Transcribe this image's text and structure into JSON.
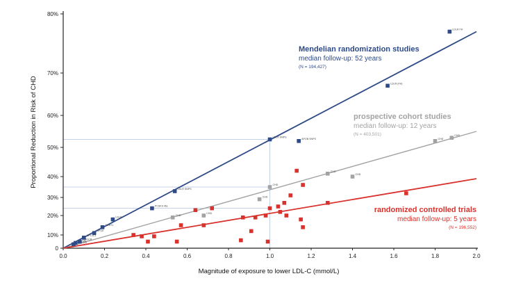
{
  "chart_data": {
    "type": "scatter",
    "title": "",
    "xlabel": "Magnitude of exposure to lower LDL-C (mmol/L)",
    "ylabel": "Proportional Reduction in Risk of CHD",
    "xlim": [
      0,
      2.0
    ],
    "ylim": [
      0,
      80
    ],
    "y_scale": "log-proportional",
    "x_ticks": [
      "0.0",
      "0.2",
      "0.4",
      "0.6",
      "0.8",
      "1.0",
      "1.2",
      "1.4",
      "1.6",
      "1.8",
      "2.0"
    ],
    "y_ticks": [
      "0",
      "10%",
      "20%",
      "30%",
      "40%",
      "50%",
      "60%",
      "70%",
      "80%"
    ],
    "grid": false,
    "colors": {
      "mendelian": "#2e4a87",
      "cohort": "#a3a3a3",
      "rct": "#d9312b"
    },
    "series": [
      {
        "name": "Mendelian randomization studies",
        "color": "#2e4a87",
        "annotation": {
          "title": "Mendelian randomization studies",
          "subtitle": "median follow-up: 52 years",
          "n": "(N = 194,427)"
        },
        "line": {
          "x": [
            0,
            2.0
          ],
          "y": [
            0,
            77
          ]
        },
        "points": [
          {
            "x": 0.05,
            "y": 3,
            "label": "ABCG5/8"
          },
          {
            "x": 0.06,
            "y": 4,
            "label": "ABCA1"
          },
          {
            "x": 0.08,
            "y": 5,
            "label": "HMGCR"
          },
          {
            "x": 0.1,
            "y": 8,
            "label": "NPC1L1"
          },
          {
            "x": 0.15,
            "y": 11,
            "label": "APOE"
          },
          {
            "x": 0.19,
            "y": 14,
            "label": "SORT1"
          },
          {
            "x": 0.24,
            "y": 18,
            "label": "LDLR"
          },
          {
            "x": 0.43,
            "y": 24,
            "label": "PCSK9 46L"
          },
          {
            "x": 0.54,
            "y": 33,
            "label": "LDLR SNPS"
          },
          {
            "x": 1.0,
            "y": 52.5,
            "label": "LDLR SNPS"
          },
          {
            "x": 1.14,
            "y": 52,
            "label": "APOB SNPS"
          },
          {
            "x": 1.57,
            "y": 67,
            "label": "LDLR (FH)"
          },
          {
            "x": 1.87,
            "y": 77,
            "label": "LDLR FH"
          }
        ]
      },
      {
        "name": "prospective cohort studies",
        "color": "#a3a3a3",
        "annotation": {
          "title": "prospective cohort studies",
          "subtitle": "median follow-up: 12 years",
          "n": "(N = 403,501)"
        },
        "line": {
          "x": [
            0,
            2.0
          ],
          "y": [
            0,
            55
          ]
        },
        "points": [
          {
            "x": 0.53,
            "y": 19,
            "label": "CHD"
          },
          {
            "x": 0.68,
            "y": 20,
            "label": "CHD"
          },
          {
            "x": 0.95,
            "y": 29,
            "label": "CHD"
          },
          {
            "x": 1.0,
            "y": 35,
            "label": "CHD"
          },
          {
            "x": 1.28,
            "y": 41,
            "label": "CHD"
          },
          {
            "x": 1.4,
            "y": 40,
            "label": "CHD"
          },
          {
            "x": 1.8,
            "y": 52,
            "label": "CHD"
          },
          {
            "x": 1.88,
            "y": 53,
            "label": "CHD"
          }
        ]
      },
      {
        "name": "randomized controlled trials",
        "color": "#d9312b",
        "annotation": {
          "title": "randomized controlled trials",
          "subtitle": "median follow-up: 5 years",
          "n": "(N = 196,552)"
        },
        "line": {
          "x": [
            0,
            2.0
          ],
          "y": [
            0,
            39
          ]
        },
        "points": [
          {
            "x": 0.34,
            "y": 10,
            "label": ""
          },
          {
            "x": 0.38,
            "y": 9,
            "label": ""
          },
          {
            "x": 0.44,
            "y": 9,
            "label": ""
          },
          {
            "x": 0.41,
            "y": 5,
            "label": ""
          },
          {
            "x": 0.55,
            "y": 5,
            "label": ""
          },
          {
            "x": 0.57,
            "y": 15,
            "label": ""
          },
          {
            "x": 0.64,
            "y": 23,
            "label": ""
          },
          {
            "x": 0.68,
            "y": 15,
            "label": ""
          },
          {
            "x": 0.72,
            "y": 24,
            "label": ""
          },
          {
            "x": 0.86,
            "y": 6,
            "label": ""
          },
          {
            "x": 0.87,
            "y": 19,
            "label": ""
          },
          {
            "x": 0.91,
            "y": 12,
            "label": ""
          },
          {
            "x": 0.93,
            "y": 19,
            "label": ""
          },
          {
            "x": 0.98,
            "y": 20,
            "label": ""
          },
          {
            "x": 0.99,
            "y": 5,
            "label": ""
          },
          {
            "x": 1.0,
            "y": 24,
            "label": ""
          },
          {
            "x": 1.04,
            "y": 25,
            "label": ""
          },
          {
            "x": 1.05,
            "y": 22,
            "label": ""
          },
          {
            "x": 1.07,
            "y": 27,
            "label": ""
          },
          {
            "x": 1.08,
            "y": 20,
            "label": ""
          },
          {
            "x": 1.1,
            "y": 31,
            "label": ""
          },
          {
            "x": 1.13,
            "y": 42,
            "label": ""
          },
          {
            "x": 1.16,
            "y": 36,
            "label": ""
          },
          {
            "x": 1.15,
            "y": 18,
            "label": ""
          },
          {
            "x": 1.16,
            "y": 14,
            "label": ""
          },
          {
            "x": 1.28,
            "y": 27,
            "label": ""
          },
          {
            "x": 1.66,
            "y": 32,
            "label": ""
          }
        ]
      }
    ]
  }
}
